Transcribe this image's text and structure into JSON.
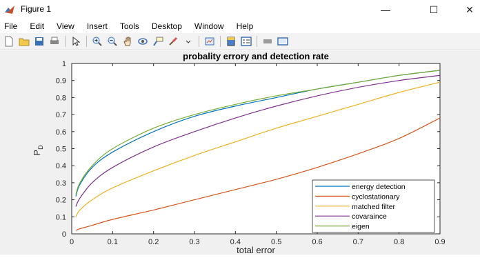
{
  "window": {
    "title": "Figure 1",
    "minimize": "—",
    "maximize": "☐",
    "close": "✕"
  },
  "menu": [
    "File",
    "Edit",
    "View",
    "Insert",
    "Tools",
    "Desktop",
    "Window",
    "Help"
  ],
  "toolbar": {
    "buttons": [
      "new-figure",
      "open-file",
      "save",
      "print",
      "edit-plot",
      "zoom-in",
      "zoom-out",
      "pan",
      "rotate-3d",
      "data-cursor",
      "brush",
      "link-plot",
      "colorbar",
      "legend",
      "hide-plot-tools",
      "show-plot-tools"
    ]
  },
  "colors": {
    "accent": "#0072bd"
  },
  "chart_data": {
    "type": "line",
    "title": "probality errory and detection rate",
    "xlabel": "total error",
    "ylabel": "P",
    "ylabel_sub": "D",
    "xlim": [
      0,
      0.9
    ],
    "ylim": [
      0,
      1
    ],
    "xticks": [
      "0",
      "0.1",
      "0.2",
      "0.3",
      "0.4",
      "0.5",
      "0.6",
      "0.7",
      "0.8",
      "0.9"
    ],
    "yticks": [
      "0",
      "0.1",
      "0.2",
      "0.3",
      "0.4",
      "0.5",
      "0.6",
      "0.7",
      "0.8",
      "0.9",
      "1"
    ],
    "grid": false,
    "legend_position": "bottom-right",
    "x": [
      0.01,
      0.02,
      0.05,
      0.1,
      0.2,
      0.3,
      0.4,
      0.5,
      0.6,
      0.7,
      0.8,
      0.9
    ],
    "series": [
      {
        "name": "energy detection",
        "color": "#0072bd",
        "values": [
          0.22,
          0.29,
          0.39,
          0.48,
          0.6,
          0.69,
          0.75,
          0.8,
          0.85,
          0.89,
          0.93,
          0.96
        ]
      },
      {
        "name": "cyclostationary",
        "color": "#d95319",
        "values": [
          0.02,
          0.03,
          0.05,
          0.085,
          0.14,
          0.2,
          0.26,
          0.32,
          0.39,
          0.47,
          0.56,
          0.68
        ]
      },
      {
        "name": "matched filter",
        "color": "#edb120",
        "values": [
          0.1,
          0.14,
          0.2,
          0.27,
          0.37,
          0.46,
          0.54,
          0.62,
          0.69,
          0.76,
          0.83,
          0.89
        ]
      },
      {
        "name": "covaraince",
        "color": "#7e2f8e",
        "values": [
          0.16,
          0.21,
          0.3,
          0.39,
          0.51,
          0.6,
          0.68,
          0.75,
          0.81,
          0.86,
          0.9,
          0.93
        ]
      },
      {
        "name": "eigen",
        "color": "#77ac30",
        "values": [
          0.23,
          0.3,
          0.4,
          0.5,
          0.62,
          0.7,
          0.76,
          0.81,
          0.85,
          0.89,
          0.93,
          0.96
        ]
      }
    ]
  }
}
